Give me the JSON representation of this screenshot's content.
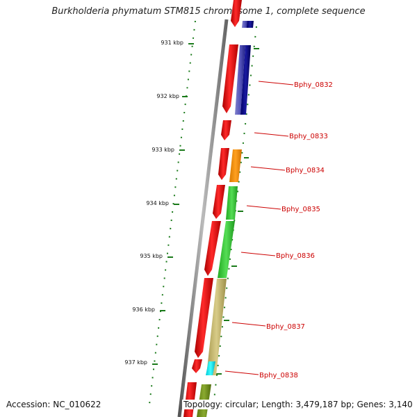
{
  "title": "Burkholderia phymatum STM815 chromosome 1, complete sequence",
  "footer": {
    "accession": "Accession: NC_010622",
    "summary": "Topology: circular; Length: 3,479,187 bp; Genes: 3,140"
  },
  "scale_marks": [
    "931 kbp",
    "932 kbp",
    "933 kbp",
    "934 kbp",
    "935 kbp",
    "936 kbp",
    "937 kbp"
  ],
  "gene_labels": [
    "Bphy_0832",
    "Bphy_0833",
    "Bphy_0834",
    "Bphy_0835",
    "Bphy_0836",
    "Bphy_0837",
    "Bphy_0838"
  ],
  "colors": {
    "backbone": "#8a8a8a",
    "cds": "#ff0000",
    "scale": "#1a7a1a",
    "label": "#cc0000"
  }
}
